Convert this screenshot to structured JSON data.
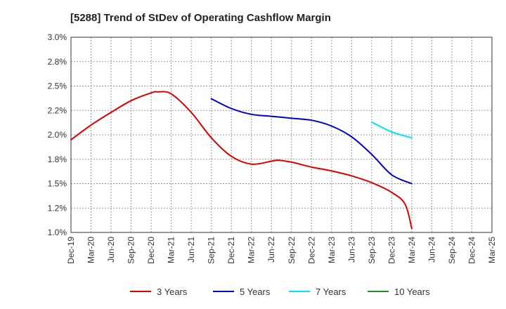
{
  "chart_data": {
    "type": "line",
    "title": "[5288]  Trend of StDev of Operating Cashflow Margin",
    "xlabel": "",
    "ylabel": "",
    "ylim": [
      1.0,
      3.0
    ],
    "yticks": [
      "1.0%",
      "1.2%",
      "1.5%",
      "1.8%",
      "2.0%",
      "2.2%",
      "2.5%",
      "2.8%",
      "3.0%"
    ],
    "xticks": [
      "Dec-19",
      "Mar-20",
      "Jun-20",
      "Sep-20",
      "Dec-20",
      "Mar-21",
      "Jun-21",
      "Sep-21",
      "Dec-21",
      "Mar-22",
      "Jun-22",
      "Sep-22",
      "Dec-22",
      "Mar-23",
      "Jun-23",
      "Sep-23",
      "Dec-23",
      "Mar-24",
      "Jun-24",
      "Sep-24",
      "Dec-24",
      "Mar-25"
    ],
    "grid": true,
    "legend_position": "bottom",
    "series": [
      {
        "name": "3 Years",
        "color": "#dd0000",
        "values": [
          [
            "Dec-19",
            1.95
          ],
          [
            "Mar-20",
            2.1
          ],
          [
            "Jun-20",
            2.23
          ],
          [
            "Sep-20",
            2.35
          ],
          [
            "Dec-20",
            2.43
          ],
          [
            "Jan-21",
            2.44
          ],
          [
            "Mar-21",
            2.42
          ],
          [
            "Jun-21",
            2.23
          ],
          [
            "Sep-21",
            1.97
          ],
          [
            "Dec-21",
            1.78
          ],
          [
            "Mar-22",
            1.7
          ],
          [
            "Jun-22",
            1.73
          ],
          [
            "Jul-22",
            1.74
          ],
          [
            "Sep-22",
            1.72
          ],
          [
            "Dec-22",
            1.67
          ],
          [
            "Mar-23",
            1.63
          ],
          [
            "Jun-23",
            1.58
          ],
          [
            "Sep-23",
            1.51
          ],
          [
            "Dec-23",
            1.41
          ],
          [
            "Feb-24",
            1.29
          ],
          [
            "Mar-24",
            1.04
          ]
        ]
      },
      {
        "name": "5 Years",
        "color": "#0000cc",
        "values": [
          [
            "Sep-21",
            2.37
          ],
          [
            "Dec-21",
            2.27
          ],
          [
            "Mar-22",
            2.21
          ],
          [
            "Jun-22",
            2.19
          ],
          [
            "Sep-22",
            2.17
          ],
          [
            "Dec-22",
            2.15
          ],
          [
            "Mar-23",
            2.09
          ],
          [
            "Jun-23",
            1.98
          ],
          [
            "Sep-23",
            1.8
          ],
          [
            "Dec-23",
            1.59
          ],
          [
            "Mar-24",
            1.5
          ]
        ]
      },
      {
        "name": "7 Years",
        "color": "#00e5ee",
        "values": [
          [
            "Sep-23",
            2.13
          ],
          [
            "Dec-23",
            2.03
          ],
          [
            "Mar-24",
            1.97
          ]
        ]
      },
      {
        "name": "10 Years",
        "color": "#228b22",
        "values": []
      }
    ]
  }
}
